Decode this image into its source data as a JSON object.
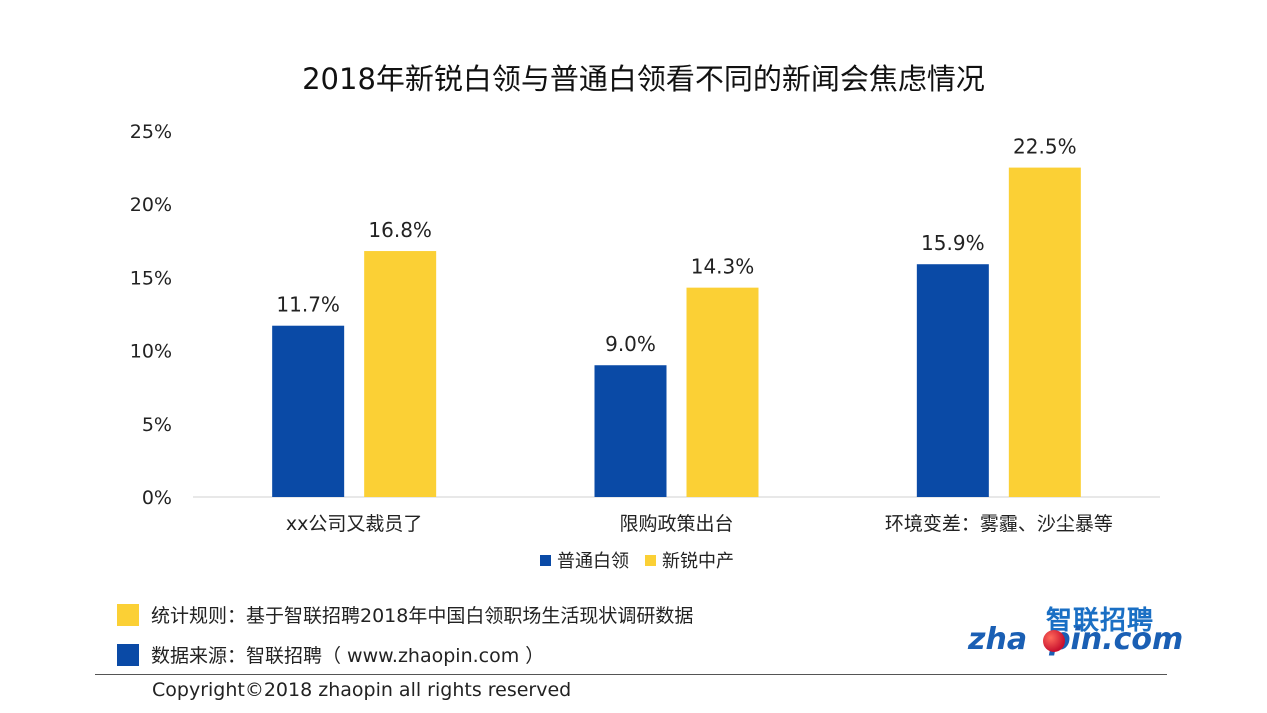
{
  "chart_data": {
    "type": "bar",
    "title": "2018年新锐白领与普通白领看不同的新闻会焦虑情况",
    "categories": [
      "xx公司又裁员了",
      "限购政策出台",
      "环境变差：雾霾、沙尘暴等"
    ],
    "series": [
      {
        "name": "普通白领",
        "values": [
          11.7,
          9.0,
          15.9
        ],
        "color": "#0a4aa6"
      },
      {
        "name": "新锐中产",
        "values": [
          16.8,
          14.3,
          22.5
        ],
        "color": "#fbd035"
      }
    ],
    "data_labels": [
      [
        "11.7%",
        "9.0%",
        "15.9%"
      ],
      [
        "16.8%",
        "14.3%",
        "22.5%"
      ]
    ],
    "ylim": [
      0,
      25
    ],
    "yticks": [
      "0%",
      "5%",
      "10%",
      "15%",
      "20%",
      "25%"
    ],
    "grid": false,
    "legend_position": "bottom"
  },
  "notes": {
    "rule": {
      "text": "统计规则：基于智联招聘2018年中国白领职场生活现状调研数据",
      "color": "#fbd035"
    },
    "source": {
      "text": "数据来源：智联招聘（ www.zhaopin.com ）",
      "color": "#0a4aa6"
    }
  },
  "logo": {
    "cn": "智联招聘",
    "en_left": "zha",
    "en_right": "pin.com"
  },
  "copyright": "Copyright©2018 zhaopin all rights reserved"
}
